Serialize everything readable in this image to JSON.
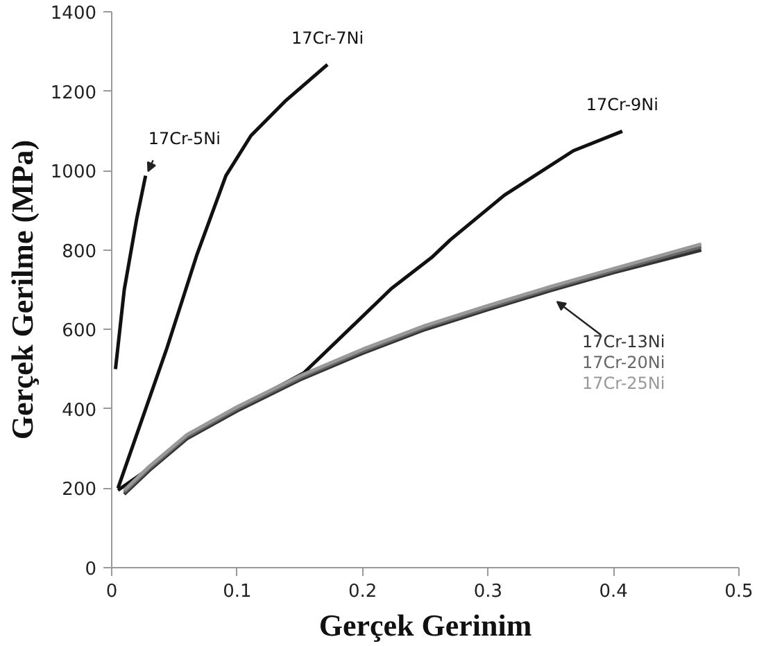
{
  "chart_data": {
    "type": "line",
    "xlabel": "Gerçek Gerinim",
    "ylabel": "Gerçek Gerilme (MPa)",
    "xlim": [
      0,
      0.5
    ],
    "ylim": [
      0,
      1400
    ],
    "xticks": [
      0,
      0.1,
      0.2,
      0.3,
      0.4,
      0.5
    ],
    "yticks": [
      0,
      200,
      400,
      600,
      800,
      1000,
      1200,
      1400
    ],
    "grid": false,
    "legend": false,
    "line_style": "solid",
    "marker": "none",
    "series": [
      {
        "name": "17Cr-5Ni",
        "color": "#111111",
        "x": [
          0.003,
          0.01,
          0.02,
          0.027
        ],
        "values": [
          500,
          700,
          880,
          987
        ]
      },
      {
        "name": "17Cr-7Ni",
        "color": "#111111",
        "x": [
          0.005,
          0.044,
          0.068,
          0.091,
          0.111,
          0.138,
          0.172
        ],
        "values": [
          200,
          553,
          789,
          987,
          1088,
          1174,
          1267
        ]
      },
      {
        "name": "17Cr-9Ni",
        "color": "#111111",
        "x": [
          0.005,
          0.03,
          0.06,
          0.1,
          0.153,
          0.223,
          0.255,
          0.27,
          0.313,
          0.368,
          0.407
        ],
        "values": [
          195,
          250,
          330,
          400,
          490,
          703,
          781,
          826,
          938,
          1050,
          1099
        ]
      },
      {
        "name": "17Cr-13Ni",
        "color": "#333333",
        "x": [
          0.01,
          0.03,
          0.06,
          0.1,
          0.15,
          0.2,
          0.25,
          0.3,
          0.35,
          0.4,
          0.47
        ],
        "values": [
          185,
          245,
          325,
          395,
          473,
          540,
          600,
          650,
          698,
          743,
          800
        ]
      },
      {
        "name": "17Cr-20Ni",
        "color": "#666666",
        "x": [
          0.01,
          0.03,
          0.06,
          0.1,
          0.15,
          0.2,
          0.25,
          0.3,
          0.35,
          0.4,
          0.47
        ],
        "values": [
          190,
          250,
          330,
          400,
          478,
          545,
          605,
          655,
          703,
          748,
          808
        ]
      },
      {
        "name": "17Cr-25Ni",
        "color": "#999999",
        "x": [
          0.01,
          0.03,
          0.06,
          0.1,
          0.15,
          0.2,
          0.25,
          0.3,
          0.35,
          0.4,
          0.47
        ],
        "values": [
          195,
          255,
          335,
          405,
          483,
          550,
          610,
          660,
          708,
          753,
          815
        ]
      }
    ]
  }
}
